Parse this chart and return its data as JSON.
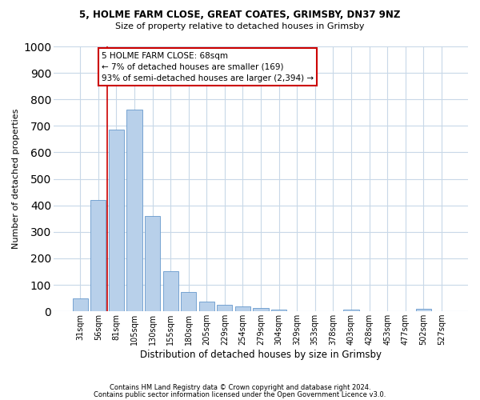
{
  "title1": "5, HOLME FARM CLOSE, GREAT COATES, GRIMSBY, DN37 9NZ",
  "title2": "Size of property relative to detached houses in Grimsby",
  "xlabel": "Distribution of detached houses by size in Grimsby",
  "ylabel": "Number of detached properties",
  "categories": [
    "31sqm",
    "56sqm",
    "81sqm",
    "105sqm",
    "130sqm",
    "155sqm",
    "180sqm",
    "205sqm",
    "229sqm",
    "254sqm",
    "279sqm",
    "304sqm",
    "329sqm",
    "353sqm",
    "378sqm",
    "403sqm",
    "428sqm",
    "453sqm",
    "477sqm",
    "502sqm",
    "527sqm"
  ],
  "values": [
    50,
    420,
    685,
    760,
    360,
    150,
    72,
    38,
    25,
    18,
    13,
    8,
    0,
    0,
    0,
    7,
    0,
    0,
    0,
    10,
    0
  ],
  "bar_color": "#b8d0ea",
  "bar_edge_color": "#6699cc",
  "vline_x": 1.48,
  "vline_color": "#cc0000",
  "annotation_text": "5 HOLME FARM CLOSE: 68sqm\n← 7% of detached houses are smaller (169)\n93% of semi-detached houses are larger (2,394) →",
  "annotation_box_color": "#ffffff",
  "annotation_box_edge": "#cc0000",
  "ylim": [
    0,
    1000
  ],
  "yticks": [
    0,
    100,
    200,
    300,
    400,
    500,
    600,
    700,
    800,
    900,
    1000
  ],
  "footer1": "Contains HM Land Registry data © Crown copyright and database right 2024.",
  "footer2": "Contains public sector information licensed under the Open Government Licence v3.0.",
  "bg_color": "#ffffff",
  "grid_color": "#c8d8e8",
  "title1_fontsize": 8.5,
  "title2_fontsize": 8,
  "ylabel_fontsize": 8,
  "xlabel_fontsize": 8.5,
  "tick_fontsize": 7,
  "footer_fontsize": 6,
  "annot_fontsize": 7.5
}
